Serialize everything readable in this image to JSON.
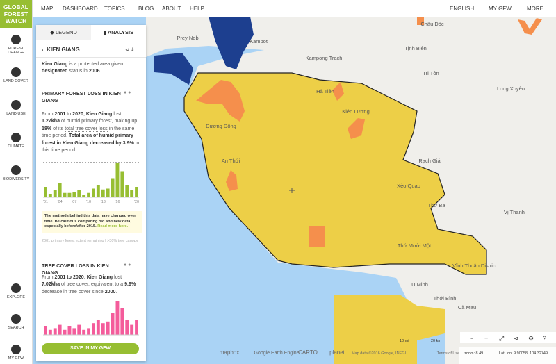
{
  "logo": [
    "GLOBAL",
    "FOREST",
    "WATCH"
  ],
  "sidebar": [
    "FOREST CHANGE",
    "LAND COVER",
    "LAND USE",
    "CLIMATE",
    "BIODIVERSITY"
  ],
  "sidebar_bottom": [
    "EXPLORE",
    "SEARCH",
    "MY GFW"
  ],
  "nav": [
    "MAP",
    "DASHBOARD",
    "TOPICS",
    "BLOG",
    "ABOUT",
    "HELP"
  ],
  "nav_right": [
    "ENGLISH",
    "MY GFW",
    "MORE"
  ],
  "tabs": [
    "LEGEND",
    "ANALYSIS"
  ],
  "area_title": "KIEN GIANG",
  "description": [
    {
      "text": "Kien Giang",
      "bold": true
    },
    {
      "text": " is a protected area given ",
      "bold": false
    },
    {
      "text": "designated",
      "bold": true
    },
    {
      "text": " status in ",
      "bold": false
    },
    {
      "text": "2006",
      "bold": true
    },
    {
      "text": ".",
      "bold": false
    }
  ],
  "widget_primary": {
    "title": "PRIMARY FOREST LOSS IN KIEN GIANG",
    "sentence": [
      {
        "text": "From ",
        "bold": false
      },
      {
        "text": "2001",
        "bold": true
      },
      {
        "text": " to ",
        "bold": false
      },
      {
        "text": "2020",
        "bold": true
      },
      {
        "text": ", ",
        "bold": false
      },
      {
        "text": "Kien Giang",
        "bold": true
      },
      {
        "text": " lost ",
        "bold": false
      },
      {
        "text": "1.27kha",
        "bold": true
      },
      {
        "text": " of humid primary forest, making up ",
        "bold": false
      },
      {
        "text": "18%",
        "bold": true
      },
      {
        "text": " of its ",
        "bold": false
      },
      {
        "text": "total tree cover loss",
        "bold": false
      },
      {
        "text": " in the same time period. ",
        "bold": false
      },
      {
        "text": "Total area of humid primary forest in Kien Giang decreased by 3.9%",
        "bold": true
      },
      {
        "text": " in this time period.",
        "bold": false
      }
    ],
    "chart_data": {
      "type": "bar",
      "color": "#97be32",
      "categories": [
        "'01",
        null,
        null,
        "'04",
        null,
        null,
        "'07",
        null,
        null,
        "'10",
        null,
        null,
        "'13",
        null,
        null,
        "'16",
        null,
        null,
        null,
        "'20"
      ],
      "values": [
        12,
        4,
        8,
        16,
        5,
        5,
        6,
        8,
        3,
        5,
        10,
        14,
        9,
        10,
        22,
        40,
        30,
        14,
        8,
        12
      ]
    },
    "note": "The methods behind this data have changed over time. Be cautious comparing old and new data, especially before/after 2015.",
    "note_link": "Read more here.",
    "caption": "2001 primary forest extent remaining | >30% tree canopy"
  },
  "widget_tree": {
    "title": "TREE COVER LOSS IN KIEN GIANG",
    "sentence": [
      {
        "text": "From ",
        "bold": false
      },
      {
        "text": "2001 to 2020",
        "bold": true
      },
      {
        "text": ", ",
        "bold": false
      },
      {
        "text": "Kien Giang",
        "bold": true
      },
      {
        "text": " lost ",
        "bold": false
      },
      {
        "text": "7.02kha",
        "bold": true
      },
      {
        "text": " of tree cover, equivalent to a ",
        "bold": false
      },
      {
        "text": "9.9%",
        "bold": true
      },
      {
        "text": " decrease in tree cover since ",
        "bold": false
      },
      {
        "text": "2000",
        "bold": true
      },
      {
        "text": ".",
        "bold": false
      }
    ],
    "chart_data": {
      "type": "bar",
      "color": "#f45c9b",
      "values": [
        10,
        6,
        8,
        12,
        6,
        10,
        8,
        12,
        6,
        8,
        14,
        18,
        14,
        16,
        26,
        40,
        32,
        18,
        12,
        18
      ]
    }
  },
  "save_button": "SAVE IN MY GFW",
  "map": {
    "labels": [
      "Prey Nob",
      "Kampot",
      "Châu Đốc",
      "Tịnh Biên",
      "Kampong Trach",
      "Tri Tôn",
      "Hà Tiên",
      "Long Xuyên",
      "Kiên Lương",
      "Dương Đông",
      "An Thới",
      "Rạch Giá",
      "Xẻo Quao",
      "Thứ Ba",
      "Vị Thanh",
      "Thứ Mười Một",
      "Vĩnh Thuận District",
      "U Minh",
      "Thới Bình",
      "Cà Mau"
    ],
    "scale": [
      "10 mi",
      "20 km"
    ],
    "attribution": [
      "mapbox",
      "Google Earth Engine",
      "CARTO",
      "planet",
      "Map data ©2016 Google, INEGI",
      "Terms of Use"
    ],
    "zoom": "zoom: 8.49",
    "latlon": "Lat, lon: 9.90058, 104.32749"
  }
}
